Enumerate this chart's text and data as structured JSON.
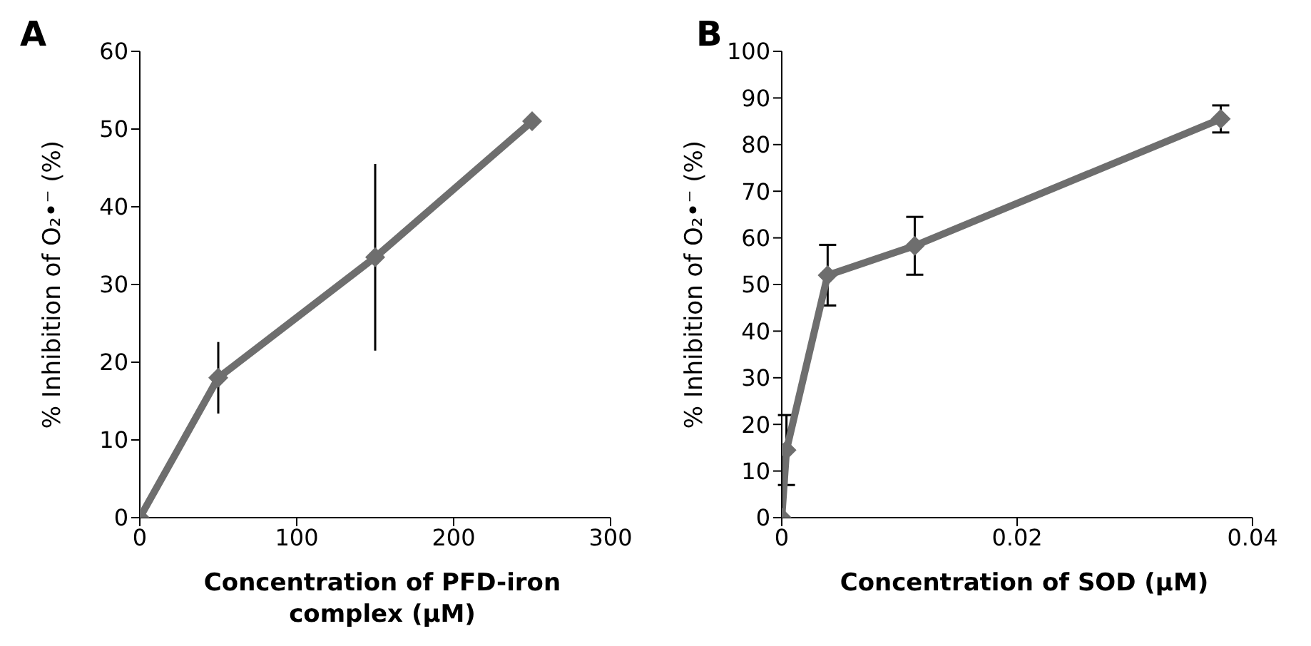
{
  "chart_data": [
    {
      "type": "line",
      "title": "A",
      "xlabel": "Concentration of PFD-iron complex (µM)",
      "ylabel": "% Inhibition of O₂•⁻ (%)",
      "x": [
        0,
        50,
        150,
        250
      ],
      "series": [
        {
          "color": "#6e6e6e",
          "values": [
            0,
            18,
            33.5,
            51
          ],
          "errors": [
            null,
            4.6,
            12,
            null
          ]
        }
      ],
      "xlim": [
        0,
        300
      ],
      "xticks": [
        0,
        100,
        200,
        300
      ],
      "ylim": [
        0,
        60
      ],
      "yticks": [
        0,
        10,
        20,
        30,
        40,
        50,
        60
      ],
      "grid": false,
      "legend": false,
      "marker": "diamond",
      "line_style": "solid"
    },
    {
      "type": "line",
      "title": "B",
      "xlabel": "Concentration of SOD (µM)",
      "ylabel": "% Inhibition of O₂•⁻ (%)",
      "x": [
        0,
        0.0004,
        0.0039,
        0.0113,
        0.0373
      ],
      "series": [
        {
          "color": "#6e6e6e",
          "values": [
            0,
            14.5,
            52,
            58.3,
            85.5
          ],
          "errors": [
            null,
            7.5,
            6.5,
            6.2,
            2.9
          ]
        }
      ],
      "xlim": [
        0,
        0.04
      ],
      "xticks": [
        0,
        0.02,
        0.04
      ],
      "ylim": [
        0,
        100
      ],
      "yticks": [
        0,
        10,
        20,
        30,
        40,
        50,
        60,
        70,
        80,
        90,
        100
      ],
      "grid": false,
      "legend": false,
      "marker": "diamond",
      "line_style": "solid"
    }
  ]
}
